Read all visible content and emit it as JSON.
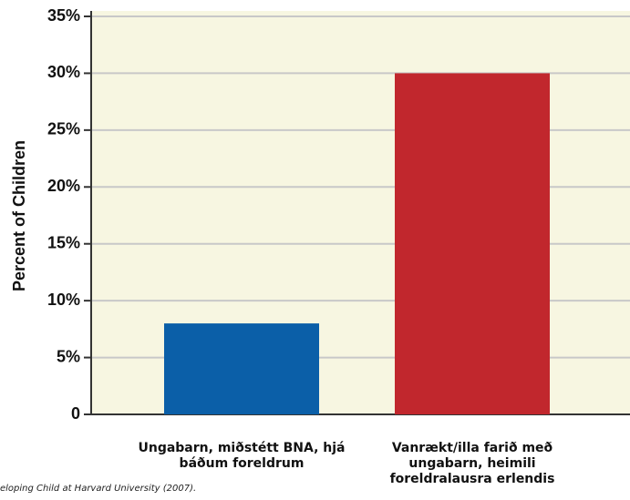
{
  "chart_data": {
    "type": "bar",
    "y_label": "Percent of Children",
    "categories": [
      "Ungabarn, miðstétt BNA, hjá báðum foreldrum",
      "Vanrækt/illa farið með ungabarn, heimili foreldralausra erlendis"
    ],
    "values": [
      8,
      30
    ],
    "colors": [
      "#0b5fa8",
      "#c1272d"
    ],
    "ylim": [
      0,
      35
    ],
    "yticks": [
      0,
      {
        "value": 5,
        "label": "5%"
      },
      {
        "value": 10,
        "label": "10%"
      },
      {
        "value": 15,
        "label": "15%"
      },
      {
        "value": 20,
        "label": "20%"
      },
      {
        "value": 25,
        "label": "25%"
      },
      {
        "value": 30,
        "label": "30%"
      },
      {
        "value": 35,
        "label": "35%"
      }
    ],
    "grid": true,
    "source": "eloping Child at Harvard University (2007)."
  }
}
